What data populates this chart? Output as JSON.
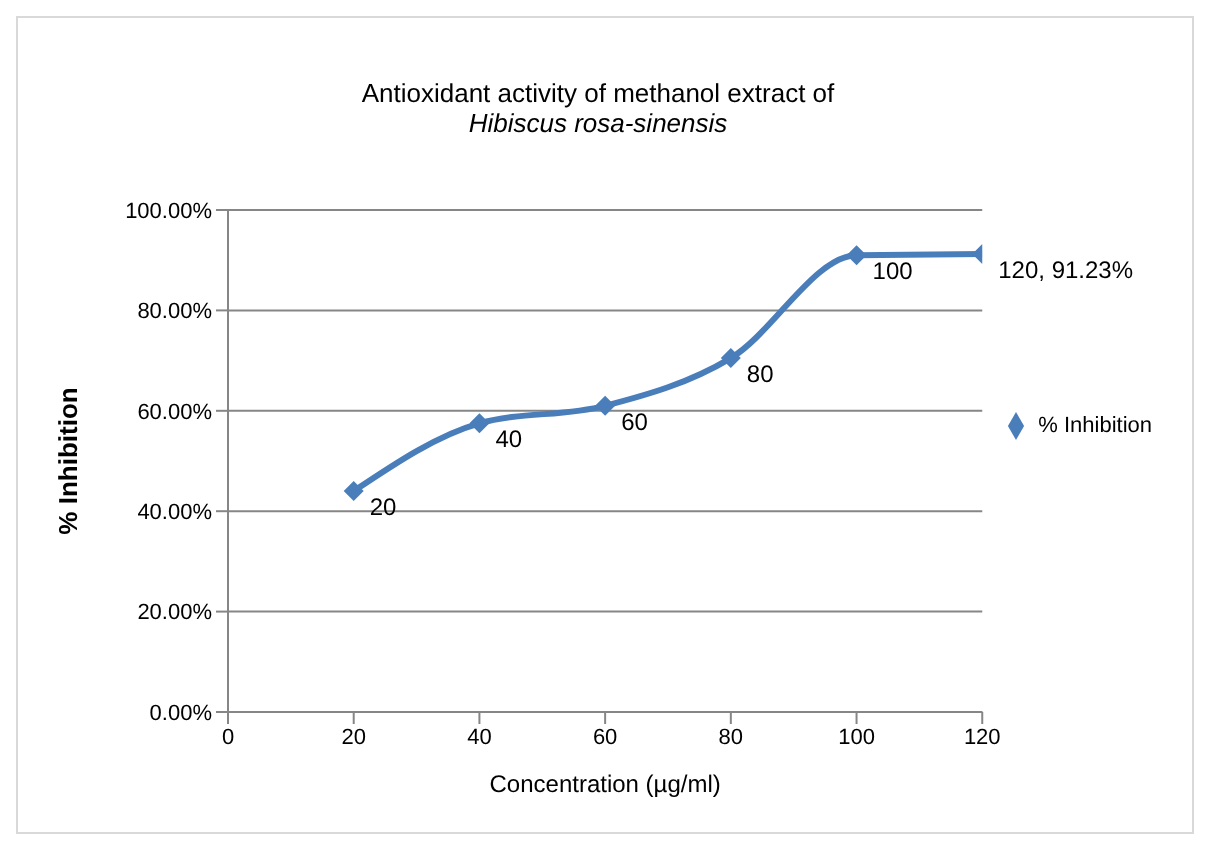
{
  "chart_data": {
    "type": "line",
    "title": "Antioxidant activity of methanol extract of",
    "subtitle": "Hibiscus rosa-sinensis",
    "xlabel": "Concentration (µg/ml)",
    "ylabel": "% Inhibition",
    "x": [
      20,
      40,
      60,
      80,
      100,
      120
    ],
    "series": [
      {
        "name": "% Inhibition",
        "color": "#4a7ebb",
        "values": [
          44,
          57.5,
          61,
          70.5,
          91,
          91.23
        ]
      }
    ],
    "annotations": [
      {
        "text": "20",
        "x": 20,
        "y": 44
      },
      {
        "text": "40",
        "x": 40,
        "y": 57.5
      },
      {
        "text": "60",
        "x": 60,
        "y": 61
      },
      {
        "text": "80",
        "x": 80,
        "y": 70.5
      },
      {
        "text": "100",
        "x": 100,
        "y": 91
      },
      {
        "text": "120, 91.23%",
        "x": 120,
        "y": 91.23
      }
    ],
    "xlim": [
      0,
      120
    ],
    "xticks": [
      0,
      20,
      40,
      60,
      80,
      100,
      120
    ],
    "ylim": [
      0,
      100
    ],
    "yticks": [
      {
        "value": 0,
        "label": "0.00%"
      },
      {
        "value": 20,
        "label": "20.00%"
      },
      {
        "value": 40,
        "label": "40.00%"
      },
      {
        "value": 60,
        "label": "60.00%"
      },
      {
        "value": 80,
        "label": "80.00%"
      },
      {
        "value": 100,
        "label": "100.00%"
      }
    ],
    "grid": "y",
    "legend": "right",
    "marker": "diamond",
    "line_style": "solid"
  }
}
